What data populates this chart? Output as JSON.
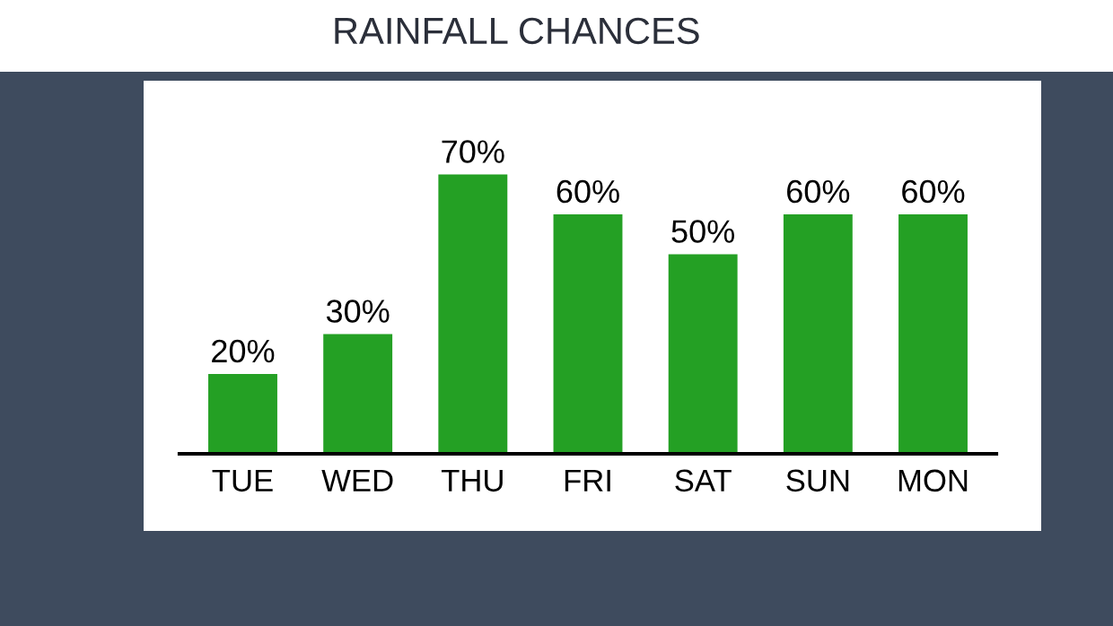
{
  "chart_data": {
    "type": "bar",
    "title": "RAINFALL CHANCES",
    "categories": [
      "TUE",
      "WED",
      "THU",
      "FRI",
      "SAT",
      "SUN",
      "MON"
    ],
    "values": [
      20,
      30,
      70,
      60,
      50,
      60,
      60
    ],
    "value_labels": [
      "20%",
      "30%",
      "70%",
      "60%",
      "50%",
      "60%",
      "60%"
    ],
    "color": "#24a024",
    "grid": false,
    "legend": false
  }
}
